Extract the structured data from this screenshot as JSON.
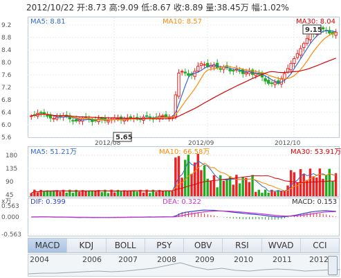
{
  "header": {
    "date": "2012/10/22",
    "open": "开:8.73",
    "high": "高:9.09",
    "low": "低:8.67",
    "close": "收:8.89",
    "volume": "量:38.45万",
    "change": "幅:1.02%"
  },
  "kline": {
    "ma5": "MA5: 8.81",
    "ma10": "MA10: 8.57",
    "ma30": "MA30: 8.04",
    "y_ticks": [
      "9.2",
      "8.8",
      "8.4",
      "8.0",
      "7.6",
      "7.2",
      "6.8",
      "6.4",
      "6.0",
      "5.6"
    ],
    "x_ticks": [
      "2012/08",
      "2012/09",
      "2012/10"
    ],
    "high_label": "9.15",
    "low_label": "5.65"
  },
  "volume": {
    "ma5": "MA5: 51.21万",
    "ma10": "MA10: 66.58万",
    "ma30": "MA30: 53.91万",
    "y_ticks": [
      "180",
      "135",
      "90",
      "45"
    ],
    "unit": "x万"
  },
  "macd": {
    "dif": "DIF: 0.399",
    "dea": "DEA: 0.322",
    "macd": "MACD: 0.153",
    "y_ticks": [
      "0.563",
      "0.000",
      "-0.563"
    ]
  },
  "tabs": [
    "MACD",
    "KDJ",
    "BOLL",
    "PSY",
    "OBV",
    "RSI",
    "WVAD",
    "CCI"
  ],
  "active_tab": "MACD",
  "timeline_years": [
    "2004",
    "2006",
    "2007",
    "2008",
    "2009",
    "2010",
    "2011",
    "2012"
  ],
  "colors": {
    "up": "#ee2222",
    "down": "#22aa22",
    "ma5": "#3366cc",
    "ma10": "#ff8800",
    "ma30": "#dd0000",
    "dif": "#3344cc",
    "dea": "#cc33cc"
  }
}
